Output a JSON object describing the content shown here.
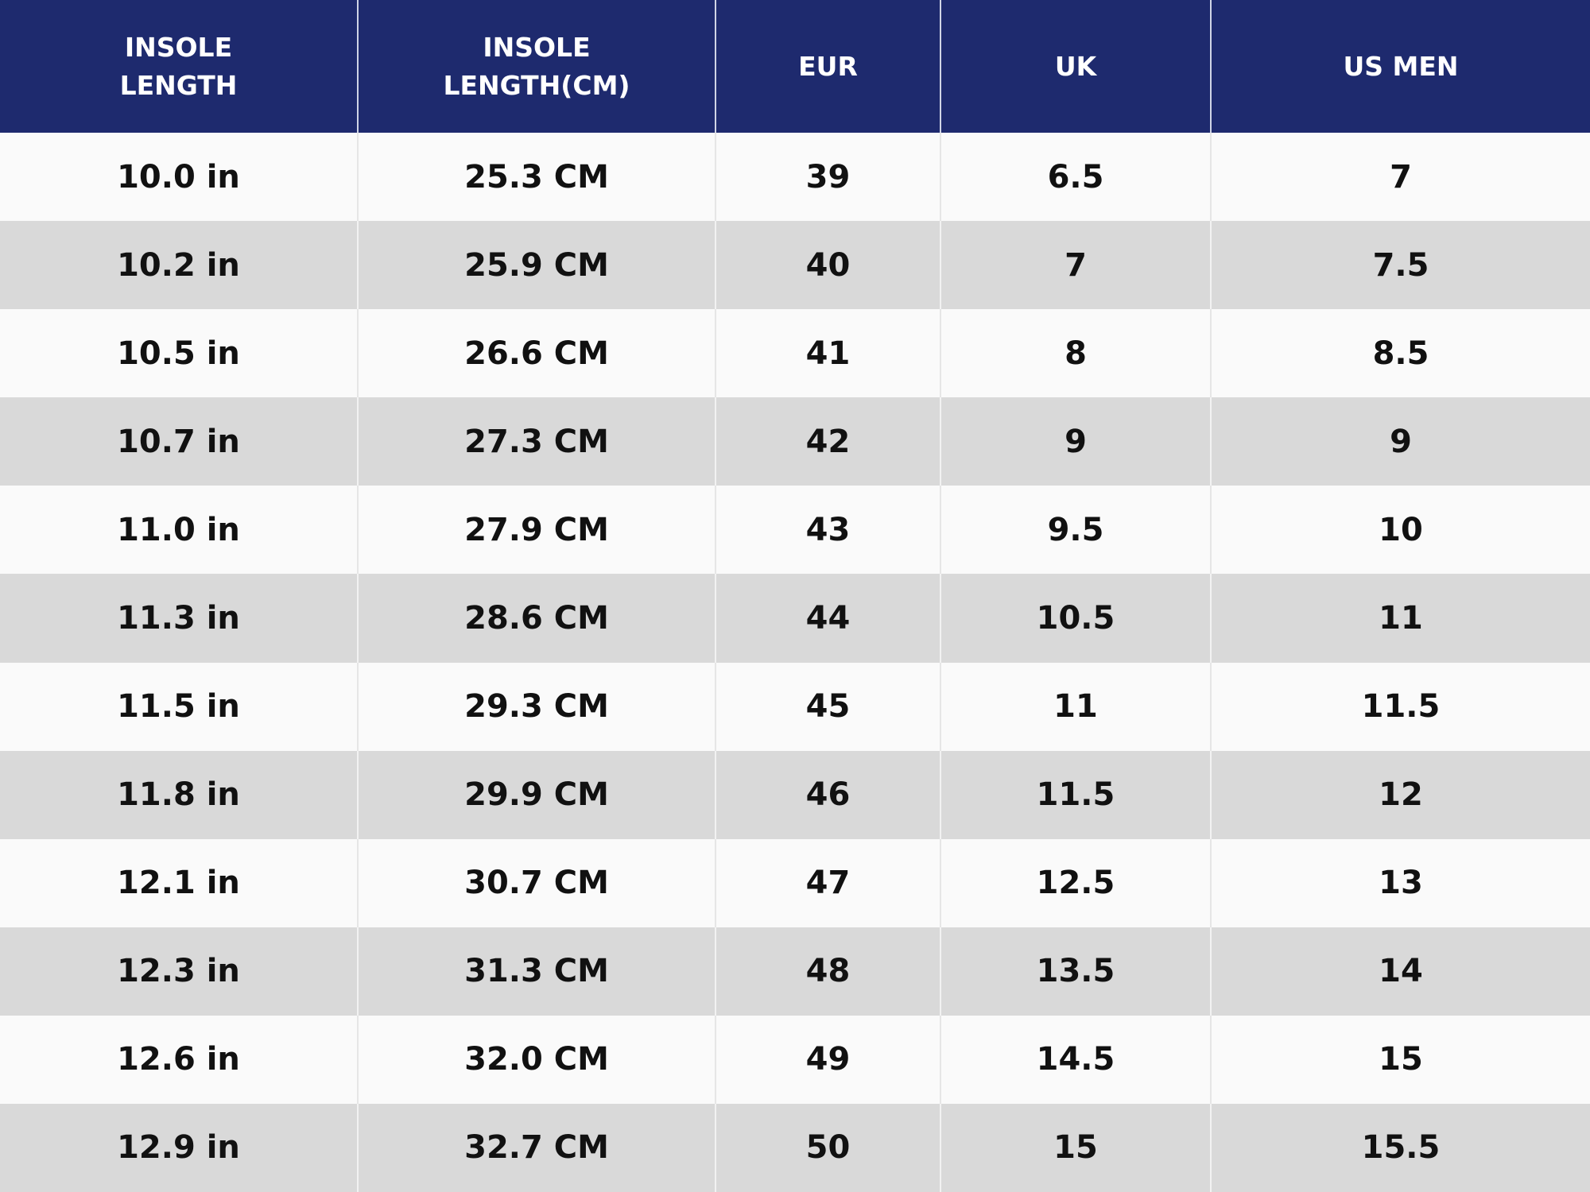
{
  "table": {
    "header": [
      "INSOLE LENGTH",
      "INSOLE LENGTH(CM)",
      "EUR",
      "UK",
      "US MEN"
    ],
    "rows": [
      [
        "10.0 in",
        "25.3 CM",
        "39",
        "6.5",
        "7"
      ],
      [
        "10.2 in",
        "25.9 CM",
        "40",
        "7",
        "7.5"
      ],
      [
        "10.5 in",
        "26.6 CM",
        "41",
        "8",
        "8.5"
      ],
      [
        "10.7 in",
        "27.3 CM",
        "42",
        "9",
        "9"
      ],
      [
        "11.0 in",
        "27.9 CM",
        "43",
        "9.5",
        "10"
      ],
      [
        "11.3 in",
        "28.6 CM",
        "44",
        "10.5",
        "11"
      ],
      [
        "11.5 in",
        "29.3 CM",
        "45",
        "11",
        "11.5"
      ],
      [
        "11.8 in",
        "29.9 CM",
        "46",
        "11.5",
        "12"
      ],
      [
        "12.1 in",
        "30.7 CM",
        "47",
        "12.5",
        "13"
      ],
      [
        "12.3 in",
        "31.3 CM",
        "48",
        "13.5",
        "14"
      ],
      [
        "12.6 in",
        "32.0 CM",
        "49",
        "14.5",
        "15"
      ],
      [
        "12.9 in",
        "32.7 CM",
        "50",
        "15",
        "15.5"
      ]
    ]
  }
}
